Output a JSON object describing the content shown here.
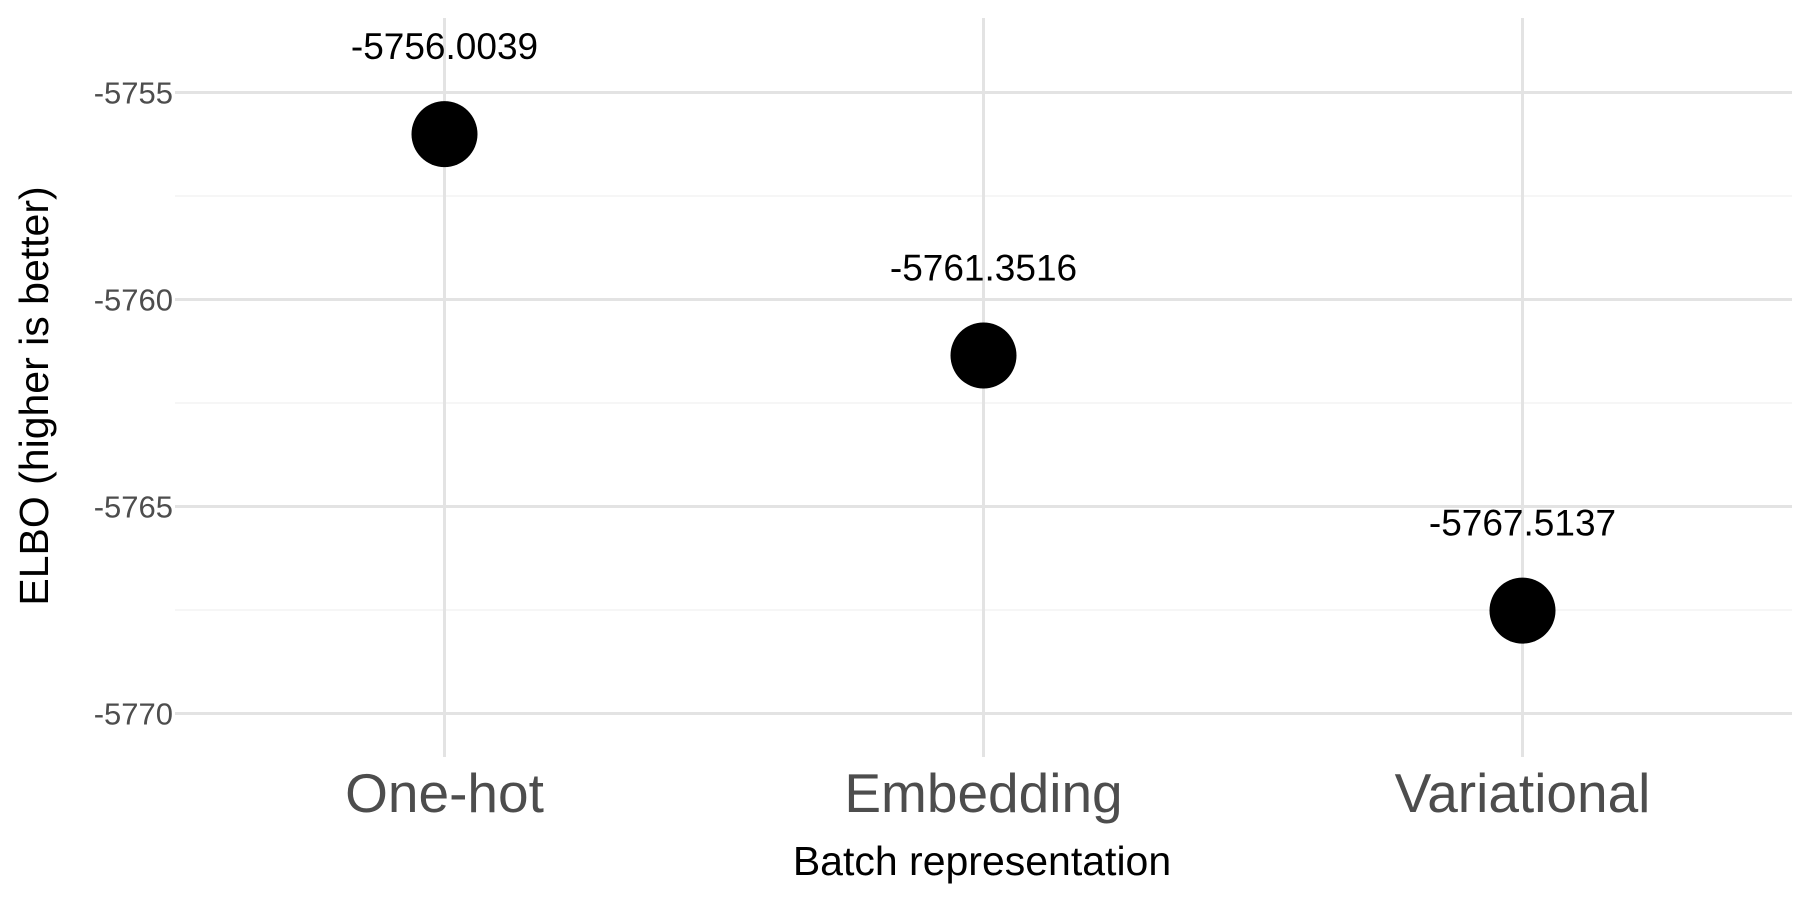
{
  "chart_data": {
    "type": "scatter",
    "categories": [
      "One-hot",
      "Embedding",
      "Variational"
    ],
    "values": [
      -5756.0039,
      -5761.3516,
      -5767.5137
    ],
    "data_labels": [
      "-5756.0039",
      "-5761.3516",
      "-5767.5137"
    ],
    "title": "",
    "xlabel": "Batch representation",
    "ylabel": "ELBO (higher is better)",
    "ylim": [
      -5771.05,
      -5753.2
    ],
    "yticks": [
      -5755,
      -5760,
      -5765,
      -5770
    ],
    "ytick_labels": [
      "-5755",
      "-5760",
      "-5765",
      "-5770"
    ],
    "grid": true,
    "legend": "none",
    "point_color": "#000000",
    "grid_color": "#e3e3e3"
  }
}
